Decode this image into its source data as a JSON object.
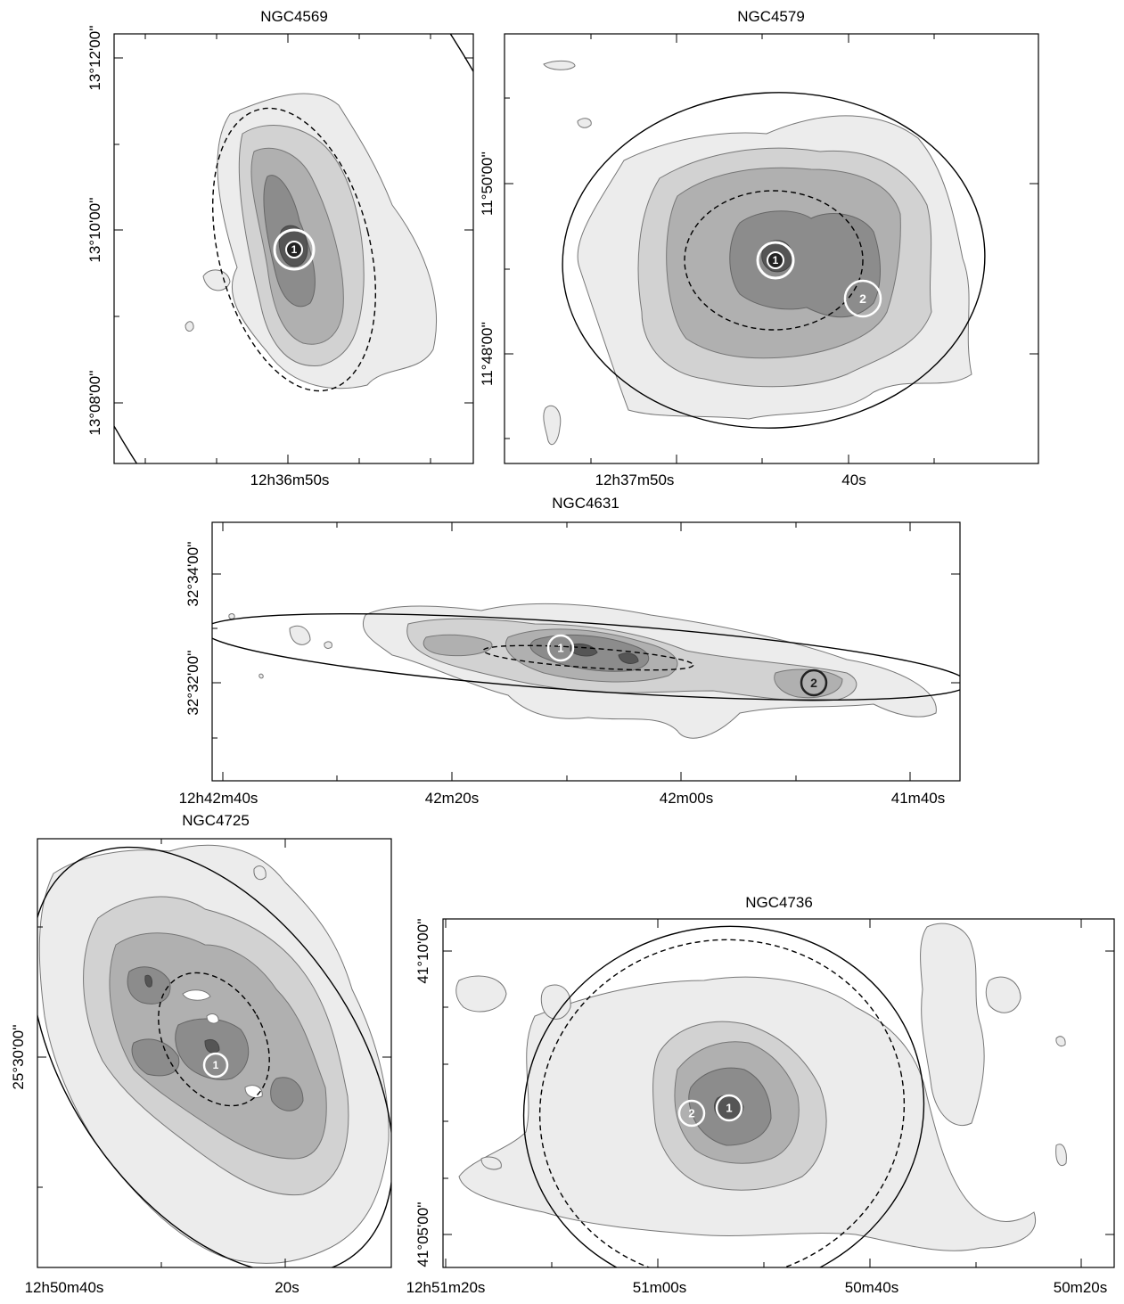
{
  "chart_data": [
    {
      "type": "contour-map",
      "title": "NGC4569",
      "x_ticks": [
        "12h36m50s"
      ],
      "y_ticks": [
        "13°12'00''",
        "13°10'00''",
        "13°08'00''"
      ],
      "sources": [
        {
          "label": "1"
        }
      ]
    },
    {
      "type": "contour-map",
      "title": "NGC4579",
      "x_ticks": [
        "12h37m50s",
        "40s"
      ],
      "y_ticks": [
        "11°50'00''",
        "11°48'00''"
      ],
      "sources": [
        {
          "label": "1"
        },
        {
          "label": "2"
        }
      ]
    },
    {
      "type": "contour-map",
      "title": "NGC4631",
      "x_ticks": [
        "12h42m40s",
        "42m20s",
        "42m00s",
        "41m40s"
      ],
      "y_ticks": [
        "32°34'00''",
        "32°32'00''"
      ],
      "sources": [
        {
          "label": "1"
        },
        {
          "label": "2"
        }
      ]
    },
    {
      "type": "contour-map",
      "title": "NGC4725",
      "x_ticks": [
        "12h50m40s",
        "20s"
      ],
      "y_ticks": [
        "25°30'00''"
      ],
      "sources": [
        {
          "label": "1"
        }
      ]
    },
    {
      "type": "contour-map",
      "title": "NGC4736",
      "x_ticks": [
        "12h51m20s",
        "51m00s",
        "50m40s",
        "50m20s"
      ],
      "y_ticks": [
        "41°10'00''",
        "41°05'00''"
      ],
      "sources": [
        {
          "label": "1"
        },
        {
          "label": "2"
        }
      ]
    }
  ]
}
